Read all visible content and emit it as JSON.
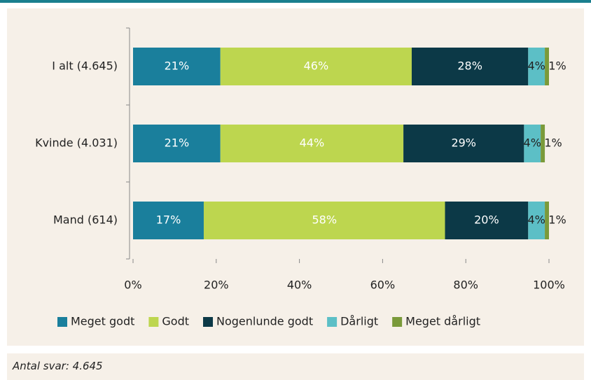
{
  "chart_data": {
    "type": "stacked-bar-horizontal",
    "categories": [
      "I alt (4.645)",
      "Kvinde (4.031)",
      "Mand (614)"
    ],
    "series": [
      {
        "name": "Meget godt",
        "color": "#1a7f9c",
        "values": [
          21,
          21,
          17
        ],
        "value_labels": [
          "21%",
          "21%",
          "17%"
        ]
      },
      {
        "name": "Godt",
        "color": "#bdd64f",
        "values": [
          46,
          44,
          58
        ],
        "value_labels": [
          "46%",
          "44%",
          "58%"
        ]
      },
      {
        "name": "Nogenlunde godt",
        "color": "#0c3947",
        "values": [
          28,
          29,
          20
        ],
        "value_labels": [
          "28%",
          "29%",
          "20%"
        ]
      },
      {
        "name": "Dårligt",
        "color": "#5cbfc6",
        "values": [
          4,
          4,
          4
        ],
        "value_labels": [
          "4%",
          "4%",
          "4%"
        ]
      },
      {
        "name": "Meget dårligt",
        "color": "#7a9a3a",
        "values": [
          1,
          1,
          1
        ],
        "value_labels": [
          "1%",
          "1%",
          "1%"
        ]
      }
    ],
    "xlim": [
      0,
      100
    ],
    "xticks": [
      {
        "value": 0,
        "label": "0%"
      },
      {
        "value": 20,
        "label": "20%"
      },
      {
        "value": 40,
        "label": "40%"
      },
      {
        "value": 60,
        "label": "60%"
      },
      {
        "value": 80,
        "label": "80%"
      },
      {
        "value": 100,
        "label": "100%"
      }
    ],
    "legend": "bottom"
  },
  "footer": "Antal svar: 4.645"
}
